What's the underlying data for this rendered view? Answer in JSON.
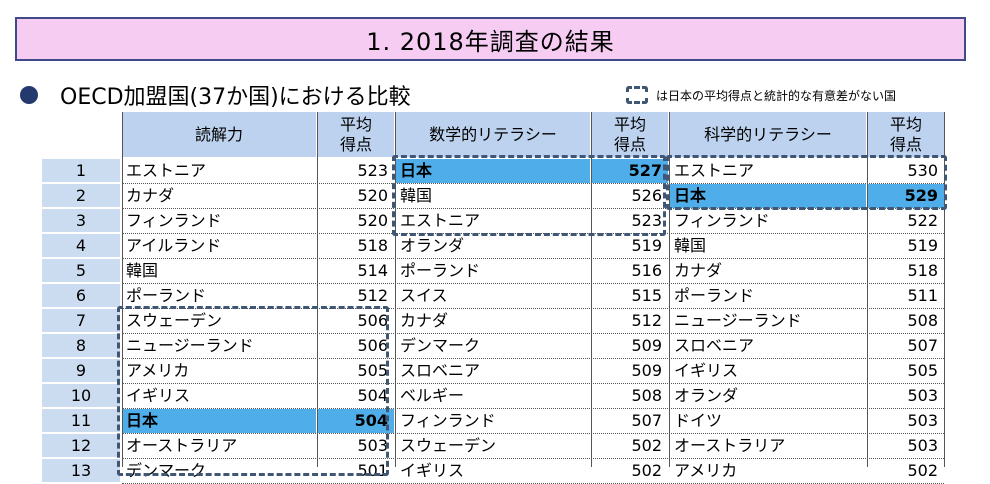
{
  "title": "1. 2018年調査の結果",
  "subtitle": "OECD加盟国(37か国)における比較",
  "legend": "は日本の平均得点と統計的な有意差がない国",
  "headers": {
    "reading": "読解力",
    "math": "数学的リテラシー",
    "science": "科学的リテラシー",
    "score_line1": "平均",
    "score_line2": "得点"
  },
  "colors": {
    "title_bg": "#f6ccf3",
    "title_border": "#404a86",
    "header_bg": "#bcd2ee",
    "rank_bg": "#cbdcf0",
    "japan_highlight": "#4faee9",
    "dashed_box": "#3f5675"
  },
  "rows": [
    {
      "rank": "1",
      "r_name": "エストニア",
      "r_score": "523",
      "m_name": "日本",
      "m_score": "527",
      "s_name": "エストニア",
      "s_score": "530"
    },
    {
      "rank": "2",
      "r_name": "カナダ",
      "r_score": "520",
      "m_name": "韓国",
      "m_score": "526",
      "s_name": "日本",
      "s_score": "529"
    },
    {
      "rank": "3",
      "r_name": "フィンランド",
      "r_score": "520",
      "m_name": "エストニア",
      "m_score": "523",
      "s_name": "フィンランド",
      "s_score": "522"
    },
    {
      "rank": "4",
      "r_name": "アイルランド",
      "r_score": "518",
      "m_name": "オランダ",
      "m_score": "519",
      "s_name": "韓国",
      "s_score": "519"
    },
    {
      "rank": "5",
      "r_name": "韓国",
      "r_score": "514",
      "m_name": "ポーランド",
      "m_score": "516",
      "s_name": "カナダ",
      "s_score": "518"
    },
    {
      "rank": "6",
      "r_name": "ポーランド",
      "r_score": "512",
      "m_name": "スイス",
      "m_score": "515",
      "s_name": "ポーランド",
      "s_score": "511"
    },
    {
      "rank": "7",
      "r_name": "スウェーデン",
      "r_score": "506",
      "m_name": "カナダ",
      "m_score": "512",
      "s_name": "ニュージーランド",
      "s_score": "508"
    },
    {
      "rank": "8",
      "r_name": "ニュージーランド",
      "r_score": "506",
      "m_name": "デンマーク",
      "m_score": "509",
      "s_name": "スロベニア",
      "s_score": "507"
    },
    {
      "rank": "9",
      "r_name": "アメリカ",
      "r_score": "505",
      "m_name": "スロベニア",
      "m_score": "509",
      "s_name": "イギリス",
      "s_score": "505"
    },
    {
      "rank": "10",
      "r_name": "イギリス",
      "r_score": "504",
      "m_name": "ベルギー",
      "m_score": "508",
      "s_name": "オランダ",
      "s_score": "503"
    },
    {
      "rank": "11",
      "r_name": "日本",
      "r_score": "504",
      "m_name": "フィンランド",
      "m_score": "507",
      "s_name": "ドイツ",
      "s_score": "503"
    },
    {
      "rank": "12",
      "r_name": "オーストラリア",
      "r_score": "503",
      "m_name": "スウェーデン",
      "m_score": "502",
      "s_name": "オーストラリア",
      "s_score": "503"
    },
    {
      "rank": "13",
      "r_name": "デンマーク",
      "r_score": "501",
      "m_name": "イギリス",
      "m_score": "502",
      "s_name": "アメリカ",
      "s_score": "502"
    }
  ],
  "highlight": {
    "reading_row": 10,
    "math_row": 0,
    "science_row": 1
  }
}
